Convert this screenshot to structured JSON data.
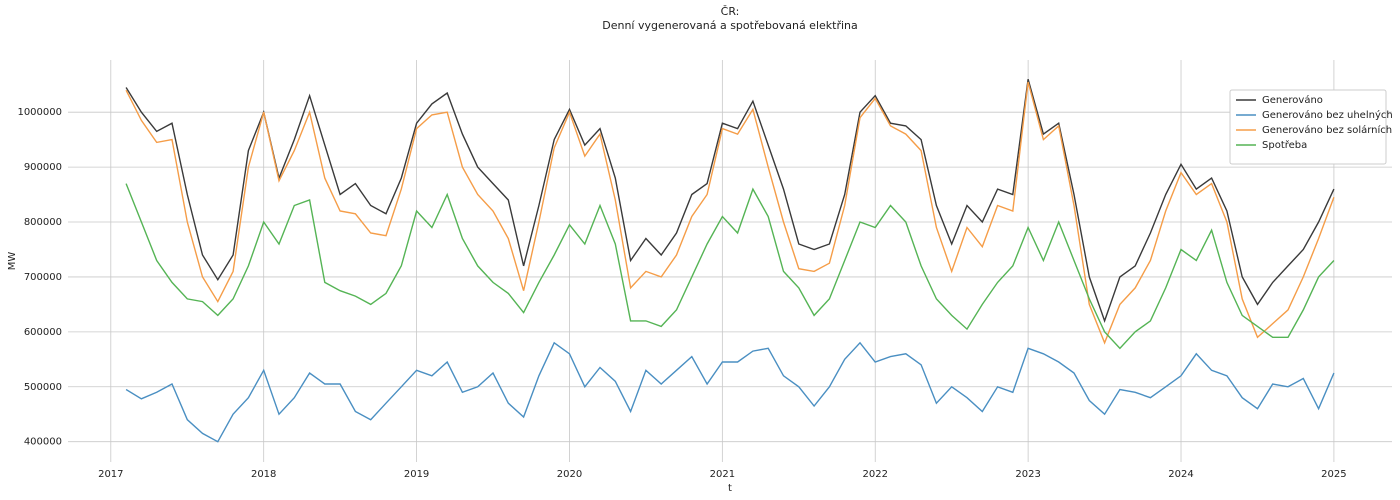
{
  "chart_data": {
    "type": "line",
    "title": "ČR:",
    "subtitle": "Denní vygenerovaná a spotřebovaná elektřina",
    "xlabel": "t",
    "ylabel": "MW",
    "x": [
      2017.1,
      2017.2,
      2017.3,
      2017.4,
      2017.5,
      2017.6,
      2017.7,
      2017.8,
      2017.9,
      2018.0,
      2018.1,
      2018.2,
      2018.3,
      2018.4,
      2018.5,
      2018.6,
      2018.7,
      2018.8,
      2018.9,
      2019.0,
      2019.1,
      2019.2,
      2019.3,
      2019.4,
      2019.5,
      2019.6,
      2019.7,
      2019.8,
      2019.9,
      2020.0,
      2020.1,
      2020.2,
      2020.3,
      2020.4,
      2020.5,
      2020.6,
      2020.7,
      2020.8,
      2020.9,
      2021.0,
      2021.1,
      2021.2,
      2021.3,
      2021.4,
      2021.5,
      2021.6,
      2021.7,
      2021.8,
      2021.9,
      2022.0,
      2022.1,
      2022.2,
      2022.3,
      2022.4,
      2022.5,
      2022.6,
      2022.7,
      2022.8,
      2022.9,
      2023.0,
      2023.1,
      2023.2,
      2023.3,
      2023.4,
      2023.5,
      2023.6,
      2023.7,
      2023.8,
      2023.9,
      2024.0,
      2024.1,
      2024.2,
      2024.3,
      2024.4,
      2024.5,
      2024.6,
      2024.7,
      2024.8,
      2024.9,
      2025.0
    ],
    "series": [
      {
        "name": "Generováno",
        "color": "#3a3a3a",
        "values": [
          1045000,
          1000000,
          965000,
          980000,
          850000,
          740000,
          695000,
          740000,
          930000,
          1000000,
          880000,
          950000,
          1030000,
          940000,
          850000,
          870000,
          830000,
          815000,
          880000,
          980000,
          1015000,
          1035000,
          960000,
          900000,
          870000,
          840000,
          720000,
          830000,
          950000,
          1005000,
          940000,
          970000,
          880000,
          730000,
          770000,
          740000,
          780000,
          850000,
          870000,
          980000,
          970000,
          1020000,
          940000,
          860000,
          760000,
          750000,
          760000,
          850000,
          1000000,
          1030000,
          980000,
          975000,
          950000,
          830000,
          760000,
          830000,
          800000,
          860000,
          850000,
          1060000,
          960000,
          980000,
          850000,
          700000,
          620000,
          700000,
          720000,
          780000,
          850000,
          905000,
          860000,
          880000,
          820000,
          700000,
          650000,
          690000,
          720000,
          750000,
          800000,
          860000
        ]
      },
      {
        "name": "Generováno bez uhelných",
        "color": "#4a8fc2",
        "values": [
          495000,
          478000,
          490000,
          505000,
          440000,
          415000,
          400000,
          450000,
          480000,
          530000,
          450000,
          480000,
          525000,
          505000,
          505000,
          455000,
          440000,
          470000,
          500000,
          530000,
          520000,
          545000,
          490000,
          500000,
          525000,
          470000,
          445000,
          520000,
          580000,
          560000,
          500000,
          535000,
          510000,
          455000,
          530000,
          505000,
          530000,
          555000,
          505000,
          545000,
          545000,
          565000,
          570000,
          520000,
          500000,
          465000,
          500000,
          550000,
          580000,
          545000,
          555000,
          560000,
          540000,
          470000,
          500000,
          480000,
          455000,
          500000,
          490000,
          570000,
          560000,
          545000,
          525000,
          475000,
          450000,
          495000,
          490000,
          480000,
          500000,
          520000,
          560000,
          530000,
          520000,
          480000,
          460000,
          505000,
          500000,
          515000,
          460000,
          525000
        ]
      },
      {
        "name": "Generováno bez solárních",
        "color": "#f59d48",
        "values": [
          1040000,
          985000,
          945000,
          950000,
          800000,
          700000,
          655000,
          710000,
          900000,
          1000000,
          875000,
          930000,
          1000000,
          880000,
          820000,
          815000,
          780000,
          775000,
          860000,
          970000,
          995000,
          1000000,
          900000,
          850000,
          820000,
          770000,
          675000,
          800000,
          935000,
          1000000,
          920000,
          960000,
          840000,
          680000,
          710000,
          700000,
          740000,
          810000,
          850000,
          970000,
          960000,
          1005000,
          900000,
          800000,
          715000,
          710000,
          725000,
          830000,
          990000,
          1025000,
          975000,
          960000,
          930000,
          790000,
          710000,
          790000,
          755000,
          830000,
          820000,
          1055000,
          950000,
          975000,
          830000,
          650000,
          580000,
          650000,
          680000,
          730000,
          820000,
          890000,
          850000,
          870000,
          800000,
          660000,
          590000,
          615000,
          640000,
          700000,
          770000,
          845000
        ]
      },
      {
        "name": "Spotřeba",
        "color": "#55b455",
        "values": [
          870000,
          800000,
          730000,
          690000,
          660000,
          655000,
          630000,
          660000,
          720000,
          800000,
          760000,
          830000,
          840000,
          690000,
          675000,
          665000,
          650000,
          670000,
          720000,
          820000,
          790000,
          850000,
          770000,
          720000,
          690000,
          670000,
          635000,
          690000,
          740000,
          795000,
          760000,
          830000,
          760000,
          620000,
          620000,
          610000,
          640000,
          700000,
          760000,
          810000,
          780000,
          860000,
          810000,
          710000,
          680000,
          630000,
          660000,
          730000,
          800000,
          790000,
          830000,
          800000,
          720000,
          660000,
          630000,
          605000,
          650000,
          690000,
          720000,
          790000,
          730000,
          800000,
          730000,
          660000,
          600000,
          570000,
          600000,
          620000,
          680000,
          750000,
          730000,
          785000,
          690000,
          630000,
          610000,
          590000,
          590000,
          640000,
          700000,
          730000
        ]
      }
    ],
    "xlim": [
      2016.72,
      2025.38
    ],
    "xticks": [
      2017,
      2018,
      2019,
      2020,
      2021,
      2022,
      2023,
      2024,
      2025
    ],
    "ylim": [
      363000,
      1095000
    ],
    "yticks": [
      400000,
      500000,
      600000,
      700000,
      800000,
      900000,
      1000000
    ],
    "grid": true,
    "legend": "upper right"
  }
}
